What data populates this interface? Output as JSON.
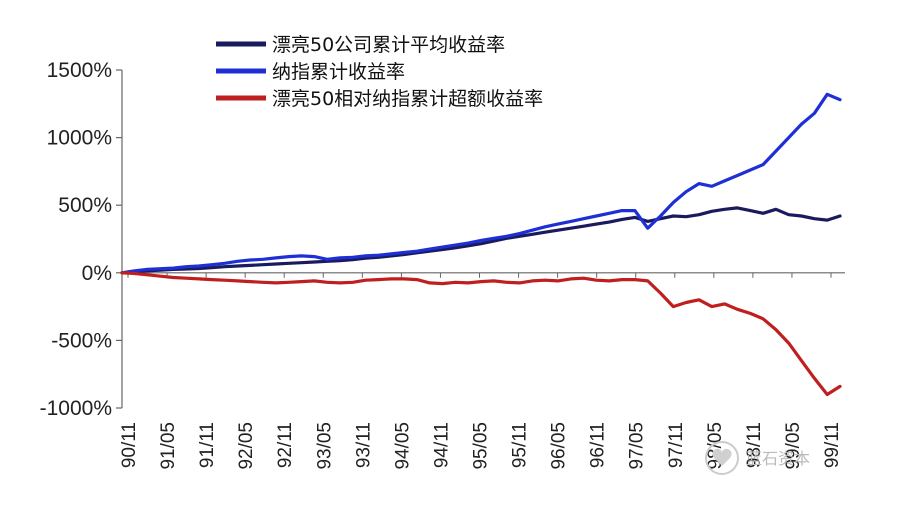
{
  "chart_data": {
    "type": "line",
    "title": "",
    "xlabel": "",
    "ylabel": "",
    "ylim": [
      -1000,
      1500
    ],
    "yticks": [
      1500,
      1000,
      500,
      0,
      -500,
      -1000
    ],
    "ytick_labels": [
      "1500%",
      "1000%",
      "500%",
      "0%",
      "-500%",
      "-1000%"
    ],
    "xtick_labels": [
      "90/11",
      "91/05",
      "91/11",
      "92/05",
      "92/11",
      "93/05",
      "93/11",
      "94/05",
      "94/11",
      "95/05",
      "95/11",
      "96/05",
      "96/11",
      "97/05",
      "97/11",
      "98/05",
      "98/11",
      "99/05",
      "99/11"
    ],
    "legend_position": "top-center",
    "grid": false,
    "x": [
      0,
      2,
      4,
      6,
      8,
      10,
      12,
      14,
      16,
      18,
      20,
      22,
      24,
      26,
      28,
      30,
      32,
      34,
      36,
      38,
      40,
      42,
      44,
      46,
      48,
      50,
      52,
      54,
      56,
      58,
      60,
      62,
      64,
      66,
      68,
      70,
      72,
      74,
      76,
      78,
      80,
      82,
      84,
      86,
      88,
      90,
      92,
      94,
      96,
      98,
      100,
      102,
      104,
      106,
      108,
      110,
      112
    ],
    "series": [
      {
        "name": "漂亮50公司累计平均收益率",
        "color": "#1a1a5e",
        "values": [
          0,
          8,
          15,
          20,
          25,
          28,
          32,
          38,
          45,
          50,
          55,
          60,
          65,
          70,
          75,
          80,
          85,
          90,
          98,
          108,
          115,
          125,
          135,
          148,
          160,
          172,
          185,
          200,
          215,
          235,
          255,
          270,
          285,
          300,
          315,
          330,
          345,
          360,
          375,
          395,
          410,
          380,
          400,
          420,
          415,
          430,
          455,
          470,
          480,
          460,
          440,
          470,
          430,
          420,
          400,
          390,
          420
        ]
      },
      {
        "name": "纳指累计收益率",
        "color": "#1f2fd6",
        "values": [
          0,
          15,
          25,
          30,
          35,
          45,
          50,
          60,
          70,
          85,
          95,
          100,
          110,
          120,
          125,
          120,
          100,
          110,
          115,
          125,
          130,
          140,
          150,
          160,
          175,
          190,
          205,
          220,
          240,
          255,
          270,
          290,
          315,
          340,
          360,
          380,
          400,
          420,
          440,
          460,
          460,
          330,
          420,
          520,
          600,
          660,
          640,
          680,
          720,
          760,
          800,
          900,
          1000,
          1100,
          1180,
          1320,
          1280
        ]
      },
      {
        "name": "漂亮50相对纳指累计超额收益率",
        "color": "#c01f1f",
        "values": [
          0,
          -5,
          -15,
          -25,
          -35,
          -40,
          -45,
          -50,
          -55,
          -60,
          -65,
          -70,
          -75,
          -70,
          -65,
          -60,
          -70,
          -75,
          -70,
          -55,
          -50,
          -45,
          -45,
          -50,
          -75,
          -80,
          -70,
          -75,
          -65,
          -60,
          -70,
          -75,
          -60,
          -55,
          -60,
          -45,
          -40,
          -55,
          -60,
          -50,
          -50,
          -60,
          -150,
          -250,
          -220,
          -200,
          -250,
          -230,
          -270,
          -300,
          -340,
          -420,
          -520,
          -650,
          -780,
          -900,
          -840
        ]
      }
    ]
  },
  "watermark": {
    "text": "蓝石资本"
  }
}
